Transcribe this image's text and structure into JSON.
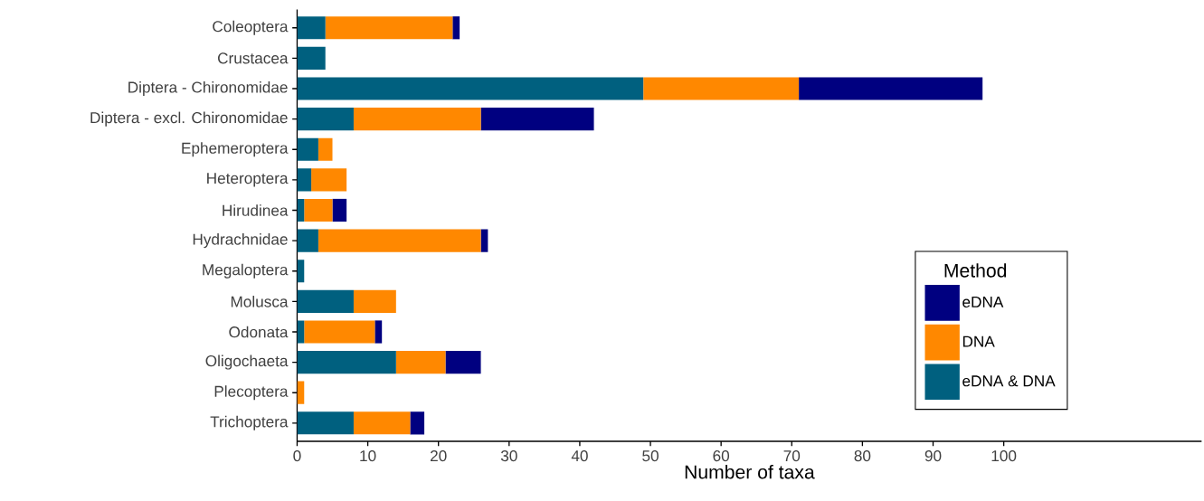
{
  "chart_data": {
    "type": "bar",
    "orientation": "horizontal",
    "stacked": true,
    "xlabel": "Number of taxa",
    "legend_title": "Method",
    "legend": "right",
    "categories": [
      "Coleoptera",
      "Crustacea",
      "Diptera - Chironomidae",
      "Diptera - excl. Chironomidae",
      "Ephemeroptera",
      "Heteroptera",
      "Hirudinea",
      "Hydrachnidae",
      "Megaloptera",
      "Molusca",
      "Odonata",
      "Oligochaeta",
      "Plecoptera",
      "Trichoptera"
    ],
    "series": [
      {
        "name": "eDNA & DNA",
        "color": "#00607f",
        "values": [
          4,
          4,
          49,
          8,
          3,
          2,
          1,
          3,
          1,
          8,
          1,
          14,
          0,
          8
        ]
      },
      {
        "name": "DNA",
        "color": "#ff8800",
        "values": [
          18,
          0,
          22,
          18,
          2,
          5,
          4,
          23,
          0,
          6,
          10,
          7,
          1,
          8
        ]
      },
      {
        "name": "eDNA",
        "color": "#000080",
        "values": [
          1,
          0,
          26,
          16,
          0,
          0,
          2,
          1,
          0,
          0,
          1,
          5,
          0,
          2
        ]
      }
    ],
    "xlim": [
      0,
      128
    ],
    "xticks": [
      0,
      10,
      20,
      30,
      40,
      50,
      60,
      70,
      80,
      90,
      100
    ]
  }
}
